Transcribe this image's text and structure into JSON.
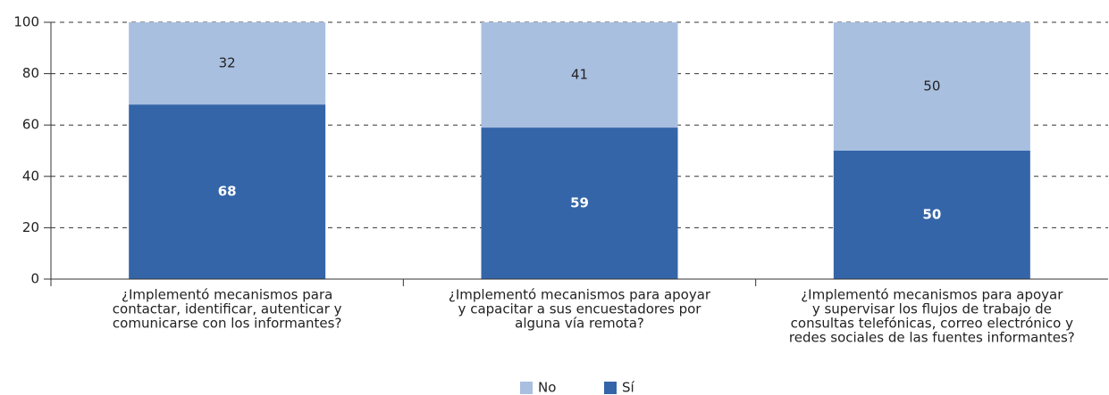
{
  "chart_data": {
    "type": "stacked_bar",
    "categories": [
      [
        "¿Implementó mecanismos para",
        "contactar, identificar, autenticar y",
        "comunicarse con los informantes?"
      ],
      [
        "¿Implementó mecanismos para apoyar",
        "y capacitar a sus encuestadores por",
        "alguna vía remota?"
      ],
      [
        "¿Implementó mecanismos para apoyar",
        "y supervisar los flujos de trabajo de",
        "consultas telefónicas, correo electrónico y",
        "redes sociales de las fuentes informantes?"
      ]
    ],
    "series": [
      {
        "name": "Sí",
        "color": "#3465a8",
        "values": [
          68,
          59,
          50
        ]
      },
      {
        "name": "No",
        "color": "#a8bfe0",
        "values": [
          32,
          41,
          50
        ]
      }
    ],
    "ylim": [
      0,
      100
    ],
    "yticks": [
      0,
      20,
      40,
      60,
      80,
      100
    ],
    "grid": true,
    "legend_order": [
      "No",
      "Sí"
    ]
  }
}
